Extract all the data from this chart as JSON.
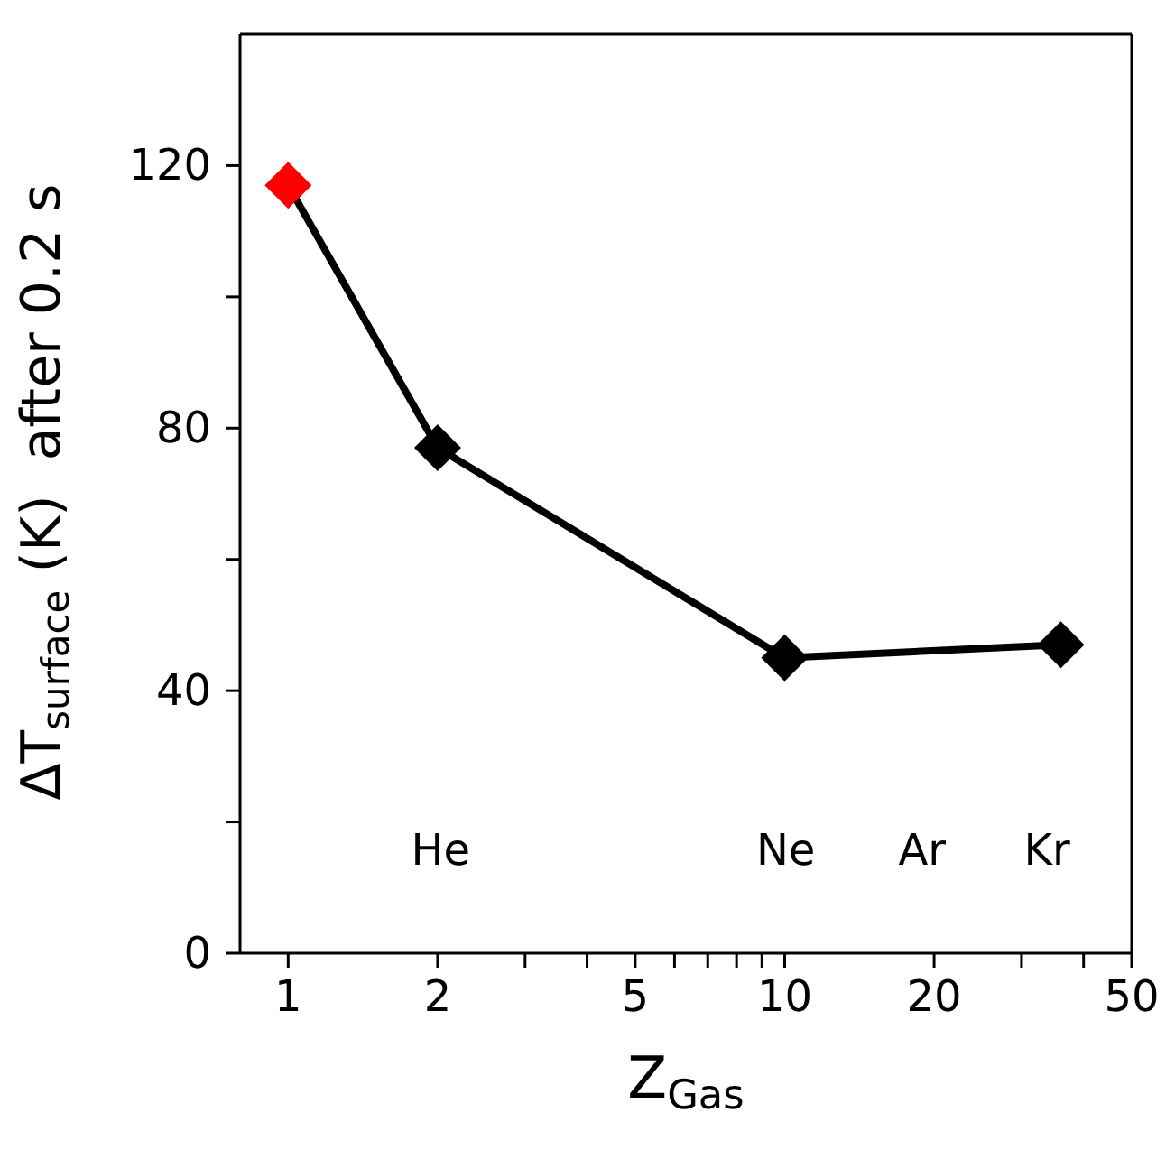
{
  "chart_data": {
    "type": "line",
    "xlabel": "Z$_{Gas}$",
    "ylabel": "ΔT$_{surface}$ (K)  after 0.2 s",
    "x": [
      1,
      2,
      10,
      36
    ],
    "series": [
      {
        "color": "#000000",
        "colors": [
          "#ff0000",
          "#000000",
          "#000000",
          "#000000"
        ],
        "values": [
          117,
          77,
          45,
          47
        ]
      }
    ],
    "log": "x",
    "xlim": [
      0.8,
      50
    ],
    "xticks": [
      1,
      2,
      {
        "value": 3,
        "label": null
      },
      {
        "value": 4,
        "label": null
      },
      5,
      {
        "value": 6,
        "label": null
      },
      {
        "value": 7,
        "label": null
      },
      {
        "value": 8,
        "label": null
      },
      {
        "value": 9,
        "label": null
      },
      10,
      20,
      {
        "value": 30,
        "label": null
      },
      {
        "value": 40,
        "label": null
      },
      50
    ],
    "ylim": [
      0,
      140
    ],
    "yticks": [
      0,
      {
        "value": 20,
        "label": null
      },
      40,
      {
        "value": 60,
        "label": null
      },
      80,
      {
        "value": 100,
        "label": null
      },
      120
    ],
    "annotations": [
      "He",
      "Ne",
      "Ar",
      "Kr"
    ],
    "marker": "diamond",
    "line_style": "solid",
    "grid": false,
    "legend": false
  }
}
